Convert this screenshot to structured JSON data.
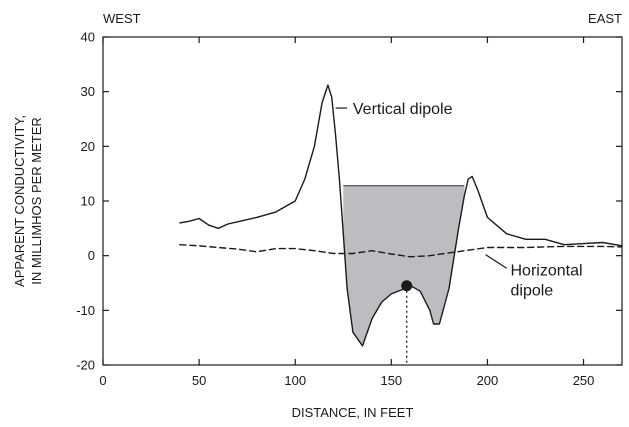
{
  "chart_data": {
    "type": "line",
    "title": "",
    "xlabel": "DISTANCE, IN FEET",
    "ylabel_lines": [
      "APPARENT CONDUCTIVITY,",
      "IN MILLIMHOS PER METER"
    ],
    "xlim": [
      0,
      270
    ],
    "ylim": [
      -20,
      40
    ],
    "x_ticks": [
      0,
      50,
      100,
      150,
      200,
      250
    ],
    "y_ticks": [
      -20,
      -10,
      0,
      10,
      20,
      30,
      40
    ],
    "grid": false,
    "direction_labels": {
      "left": "WEST",
      "right": "EAST"
    },
    "series": [
      {
        "name": "Vertical dipole",
        "style": "solid",
        "x": [
          40,
          45,
          50,
          55,
          60,
          65,
          70,
          80,
          90,
          100,
          105,
          110,
          114,
          117,
          119,
          121,
          123,
          125,
          127,
          130,
          135,
          140,
          145,
          150,
          155,
          160,
          165,
          170,
          172,
          175,
          180,
          185,
          188,
          190,
          192,
          195,
          200,
          210,
          220,
          230,
          240,
          250,
          260,
          270
        ],
        "y": [
          6,
          6.3,
          6.8,
          5.6,
          5,
          5.8,
          6.2,
          7,
          8,
          10,
          14,
          20,
          28,
          31.2,
          29,
          22,
          14,
          4,
          -6,
          -14,
          -16.5,
          -11.5,
          -8.5,
          -7,
          -6.3,
          -5.5,
          -6.5,
          -10,
          -12.5,
          -12.5,
          -6,
          5,
          11,
          14,
          14.5,
          12,
          7,
          4,
          3,
          3,
          2,
          2.2,
          2.4,
          1.8
        ]
      },
      {
        "name": "Horizontal dipole",
        "style": "dashed",
        "x": [
          40,
          50,
          60,
          70,
          80,
          90,
          100,
          110,
          120,
          130,
          140,
          150,
          160,
          170,
          180,
          190,
          200,
          210,
          220,
          230,
          240,
          250,
          260,
          270
        ],
        "y": [
          2,
          1.8,
          1.5,
          1.2,
          0.7,
          1.3,
          1.3,
          0.9,
          0.4,
          0.4,
          0.9,
          0.3,
          -0.2,
          0,
          0.5,
          1,
          1.5,
          1.5,
          1.5,
          1.6,
          1.7,
          1.7,
          1.7,
          1.6
        ]
      }
    ],
    "shaded_region": {
      "x_start": 125,
      "x_end": 188,
      "top_y": 12.8
    },
    "marker": {
      "x": 158,
      "y": -5.5
    },
    "annotations": [
      {
        "text": "Vertical dipole",
        "lines": [
          "Vertical dipole"
        ],
        "x": 130,
        "y": 27
      },
      {
        "text": "Horizontal dipole",
        "lines": [
          "Horizontal",
          "dipole"
        ],
        "x": 212,
        "y": -2.5
      }
    ]
  }
}
